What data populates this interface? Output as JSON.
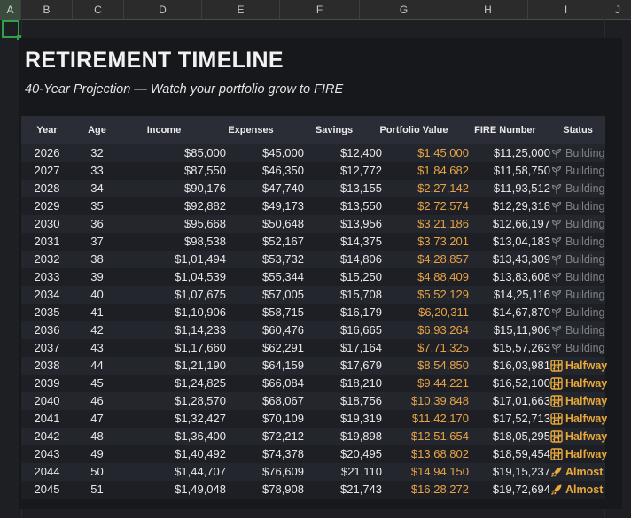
{
  "spreadsheet": {
    "columns": [
      "A",
      "B",
      "C",
      "D",
      "E",
      "F",
      "G",
      "H",
      "I",
      "J"
    ],
    "active_column": "A"
  },
  "dashboard": {
    "title": "RETIREMENT TIMELINE",
    "subtitle": "40-Year Projection — Watch your portfolio grow to FIRE"
  },
  "table": {
    "headers": [
      "Year",
      "Age",
      "Income",
      "Expenses",
      "Savings",
      "Portfolio Value",
      "FIRE Number",
      "Status"
    ],
    "rows": [
      {
        "year": "2026",
        "age": "32",
        "income": "$85,000",
        "expenses": "$45,000",
        "savings": "$12,400",
        "portfolio": "$1,45,000",
        "fire": "$11,25,000",
        "status": "Building",
        "status_type": "building"
      },
      {
        "year": "2027",
        "age": "33",
        "income": "$87,550",
        "expenses": "$46,350",
        "savings": "$12,772",
        "portfolio": "$1,84,682",
        "fire": "$11,58,750",
        "status": "Building",
        "status_type": "building"
      },
      {
        "year": "2028",
        "age": "34",
        "income": "$90,176",
        "expenses": "$47,740",
        "savings": "$13,155",
        "portfolio": "$2,27,142",
        "fire": "$11,93,512",
        "status": "Building",
        "status_type": "building"
      },
      {
        "year": "2029",
        "age": "35",
        "income": "$92,882",
        "expenses": "$49,173",
        "savings": "$13,550",
        "portfolio": "$2,72,574",
        "fire": "$12,29,318",
        "status": "Building",
        "status_type": "building"
      },
      {
        "year": "2030",
        "age": "36",
        "income": "$95,668",
        "expenses": "$50,648",
        "savings": "$13,956",
        "portfolio": "$3,21,186",
        "fire": "$12,66,197",
        "status": "Building",
        "status_type": "building"
      },
      {
        "year": "2031",
        "age": "37",
        "income": "$98,538",
        "expenses": "$52,167",
        "savings": "$14,375",
        "portfolio": "$3,73,201",
        "fire": "$13,04,183",
        "status": "Building",
        "status_type": "building"
      },
      {
        "year": "2032",
        "age": "38",
        "income": "$1,01,494",
        "expenses": "$53,732",
        "savings": "$14,806",
        "portfolio": "$4,28,857",
        "fire": "$13,43,309",
        "status": "Building",
        "status_type": "building"
      },
      {
        "year": "2033",
        "age": "39",
        "income": "$1,04,539",
        "expenses": "$55,344",
        "savings": "$15,250",
        "portfolio": "$4,88,409",
        "fire": "$13,83,608",
        "status": "Building",
        "status_type": "building"
      },
      {
        "year": "2034",
        "age": "40",
        "income": "$1,07,675",
        "expenses": "$57,005",
        "savings": "$15,708",
        "portfolio": "$5,52,129",
        "fire": "$14,25,116",
        "status": "Building",
        "status_type": "building"
      },
      {
        "year": "2035",
        "age": "41",
        "income": "$1,10,906",
        "expenses": "$58,715",
        "savings": "$16,179",
        "portfolio": "$6,20,311",
        "fire": "$14,67,870",
        "status": "Building",
        "status_type": "building"
      },
      {
        "year": "2036",
        "age": "42",
        "income": "$1,14,233",
        "expenses": "$60,476",
        "savings": "$16,665",
        "portfolio": "$6,93,264",
        "fire": "$15,11,906",
        "status": "Building",
        "status_type": "building"
      },
      {
        "year": "2037",
        "age": "43",
        "income": "$1,17,660",
        "expenses": "$62,291",
        "savings": "$17,164",
        "portfolio": "$7,71,325",
        "fire": "$15,57,263",
        "status": "Building",
        "status_type": "building"
      },
      {
        "year": "2038",
        "age": "44",
        "income": "$1,21,190",
        "expenses": "$64,159",
        "savings": "$17,679",
        "portfolio": "$8,54,850",
        "fire": "$16,03,981",
        "status": "Halfway",
        "status_type": "halfway"
      },
      {
        "year": "2039",
        "age": "45",
        "income": "$1,24,825",
        "expenses": "$66,084",
        "savings": "$18,210",
        "portfolio": "$9,44,221",
        "fire": "$16,52,100",
        "status": "Halfway",
        "status_type": "halfway"
      },
      {
        "year": "2040",
        "age": "46",
        "income": "$1,28,570",
        "expenses": "$68,067",
        "savings": "$18,756",
        "portfolio": "$10,39,848",
        "fire": "$17,01,663",
        "status": "Halfway",
        "status_type": "halfway"
      },
      {
        "year": "2041",
        "age": "47",
        "income": "$1,32,427",
        "expenses": "$70,109",
        "savings": "$19,319",
        "portfolio": "$11,42,170",
        "fire": "$17,52,713",
        "status": "Halfway",
        "status_type": "halfway"
      },
      {
        "year": "2042",
        "age": "48",
        "income": "$1,36,400",
        "expenses": "$72,212",
        "savings": "$19,898",
        "portfolio": "$12,51,654",
        "fire": "$18,05,295",
        "status": "Halfway",
        "status_type": "halfway"
      },
      {
        "year": "2043",
        "age": "49",
        "income": "$1,40,492",
        "expenses": "$74,378",
        "savings": "$20,495",
        "portfolio": "$13,68,802",
        "fire": "$18,59,454",
        "status": "Halfway",
        "status_type": "halfway"
      },
      {
        "year": "2044",
        "age": "50",
        "income": "$1,44,707",
        "expenses": "$76,609",
        "savings": "$21,110",
        "portfolio": "$14,94,150",
        "fire": "$19,15,237",
        "status": "Almost",
        "status_type": "almost"
      },
      {
        "year": "2045",
        "age": "51",
        "income": "$1,49,048",
        "expenses": "$78,908",
        "savings": "$21,743",
        "portfolio": "$16,28,272",
        "fire": "$19,72,694",
        "status": "Almost",
        "status_type": "almost"
      }
    ]
  },
  "colors": {
    "background": "#1e1f23",
    "panel": "#17181c",
    "header_row": "#2a2d36",
    "portfolio_text": "#e7a348",
    "status_accent": "#e8a93a",
    "status_muted": "#7f8187",
    "selection": "#2fa14b"
  },
  "icons": {
    "building": "seedling-icon",
    "halfway": "chart-grid-icon",
    "almost": "rocket-icon"
  }
}
